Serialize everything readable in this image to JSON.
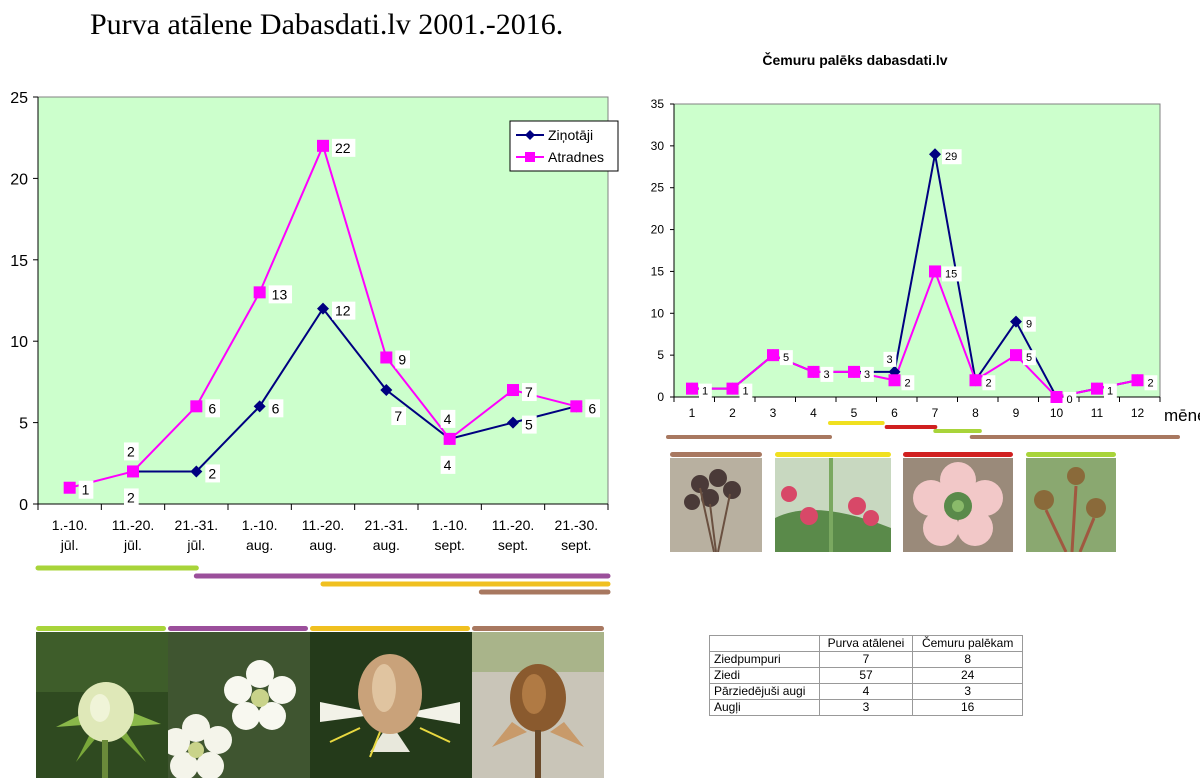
{
  "page_title": "Purva atālene Dabasdati.lv 2001.-2016.",
  "chart_data": [
    {
      "type": "line",
      "title": "",
      "categories": [
        "1.-10. jūl.",
        "11.-20. jūl.",
        "21.-31. jūl.",
        "1.-10. aug.",
        "11.-20. aug.",
        "21.-31. aug.",
        "1.-10. sept.",
        "11.-20. sept.",
        "21.-30. sept."
      ],
      "category_lines": [
        [
          "1.-10.",
          "jūl."
        ],
        [
          "11.-20.",
          "jūl."
        ],
        [
          "21.-31.",
          "jūl."
        ],
        [
          "1.-10.",
          "aug."
        ],
        [
          "11.-20.",
          "aug."
        ],
        [
          "21.-31.",
          "aug."
        ],
        [
          "1.-10.",
          "sept."
        ],
        [
          "11.-20.",
          "sept."
        ],
        [
          "21.-30.",
          "sept."
        ]
      ],
      "series": [
        {
          "name": "Ziņotāji",
          "color": "#000080",
          "marker": "diamond",
          "values": [
            null,
            2,
            2,
            6,
            12,
            7,
            4,
            5,
            6
          ]
        },
        {
          "name": "Atradnes",
          "color": "#FF00FF",
          "marker": "square",
          "values": [
            1,
            2,
            6,
            13,
            22,
            9,
            4,
            7,
            6
          ]
        }
      ],
      "yticks": [
        "0",
        "5",
        "10",
        "15",
        "20",
        "25"
      ],
      "ylim": [
        0,
        25
      ],
      "plot_bg": "#CCFFCC",
      "legend": "top-right",
      "phase_bars": [
        {
          "color": "#A8D43A",
          "from": 0,
          "to": 2.5
        },
        {
          "color": "#9B4F9B",
          "from": 2.5,
          "to": 9
        },
        {
          "color": "#F0C020",
          "from": 4.5,
          "to": 9
        },
        {
          "color": "#A87860",
          "from": 7,
          "to": 9
        }
      ]
    },
    {
      "type": "line",
      "title": "Čemuru palēks dabasdati.lv",
      "categories": [
        "1",
        "2",
        "3",
        "4",
        "5",
        "6",
        "7",
        "8",
        "9",
        "10",
        "11",
        "12"
      ],
      "xlabel": "mēneši",
      "series": [
        {
          "name": "",
          "color": "#000080",
          "marker": "diamond",
          "values": [
            1,
            1,
            5,
            3,
            3,
            3,
            29,
            2,
            9,
            0,
            1,
            2
          ]
        },
        {
          "name": "",
          "color": "#FF00FF",
          "marker": "square",
          "values": [
            1,
            1,
            5,
            3,
            3,
            2,
            15,
            2,
            5,
            0,
            1,
            2
          ]
        }
      ],
      "yticks": [
        "0",
        "5",
        "10",
        "15",
        "20",
        "25",
        "30",
        "35"
      ],
      "ylim": [
        0,
        35
      ],
      "plot_bg": "#CCFFCC",
      "phase_bars": [
        {
          "color": "#A87860",
          "from": 0,
          "to": 4
        },
        {
          "color": "#F0E020",
          "from": 4,
          "to": 5.3
        },
        {
          "color": "#D02020",
          "from": 5.4,
          "to": 6.6
        },
        {
          "color": "#A8D43A",
          "from": 6.6,
          "to": 7.7
        },
        {
          "color": "#A87860",
          "from": 7.5,
          "to": 12
        }
      ]
    }
  ],
  "table": {
    "headers": [
      "",
      "Purva atālenei",
      "Čemuru palēkam"
    ],
    "rows": [
      [
        "Ziedpumpuri",
        "7",
        "8"
      ],
      [
        "Ziedi",
        "57",
        "24"
      ],
      [
        "Pārziedējuši augi",
        "4",
        "3"
      ],
      [
        "Augļi",
        "3",
        "16"
      ]
    ]
  },
  "photos_left": [
    {
      "label": "flower-bud-photo",
      "bar_color": "#A8D43A"
    },
    {
      "label": "open-flower-photo",
      "bar_color": "#9B4F9B"
    },
    {
      "label": "withered-flower-photo",
      "bar_color": "#F0C020"
    },
    {
      "label": "fruit-capsule-photo",
      "bar_color": "#A87860"
    }
  ],
  "photos_right": [
    {
      "label": "fruit-capsule-photo",
      "bar_color": "#A87860"
    },
    {
      "label": "flower-bud-photo",
      "bar_color": "#F0E020"
    },
    {
      "label": "open-flower-photo",
      "bar_color": "#D02020"
    },
    {
      "label": "withered-flower-photo",
      "bar_color": "#A8D43A"
    }
  ]
}
